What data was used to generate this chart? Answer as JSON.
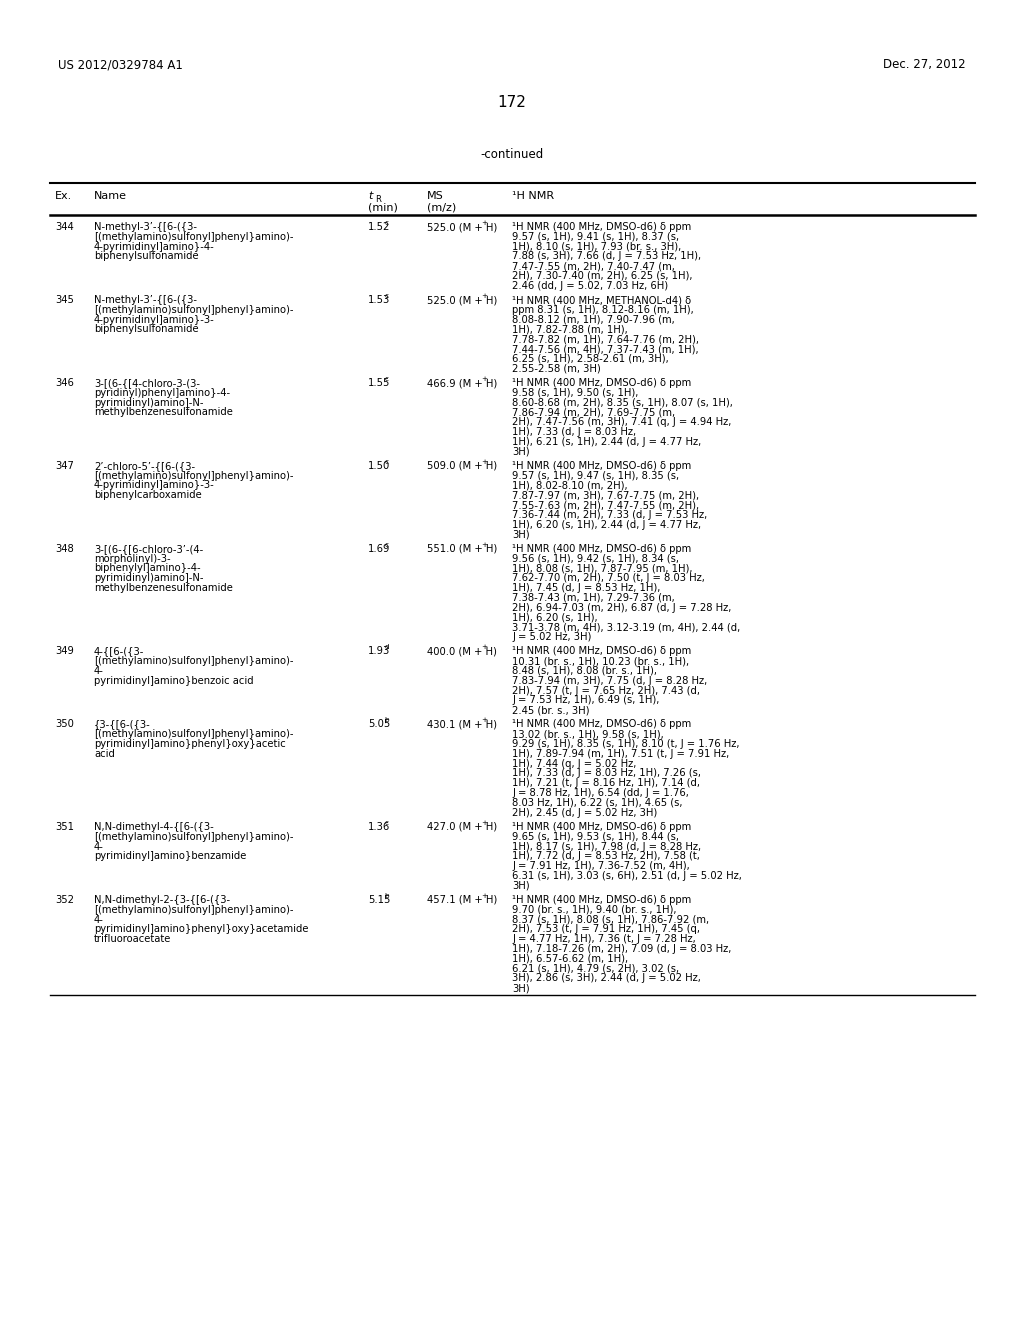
{
  "page_left": "US 2012/0329784 A1",
  "page_right": "Dec. 27, 2012",
  "page_number": "172",
  "continued": "-continued",
  "rows": [
    {
      "ex": "344",
      "name": "N-methyl-3’-{[6-({3-\n[(methylamino)sulfonyl]phenyl}amino)-\n4-pyrimidinyl]amino}-4-\nbiphenylsulfonamide",
      "tr": "1.52",
      "tr_sup": "c",
      "ms": "525.0 (M + H)+",
      "nmr": "¹H NMR (400 MHz, DMSO-d6) δ ppm\n9.57 (s, 1H), 9.41 (s, 1H), 8.37 (s,\n1H), 8.10 (s, 1H), 7.93 (br. s., 3H),\n7.88 (s, 3H), 7.66 (d, J = 7.53 Hz, 1H),\n7.47-7.55 (m, 2H), 7.40-7.47 (m,\n2H), 7.30-7.40 (m, 2H), 6.25 (s, 1H),\n2.46 (dd, J = 5.02, 7.03 Hz, 6H)"
    },
    {
      "ex": "345",
      "name": "N-methyl-3’-{[6-({3-\n[(methylamino)sulfonyl]phenyl}amino)-\n4-pyrimidinyl]amino}-3-\nbiphenylsulfonamide",
      "tr": "1.53",
      "tr_sup": "c",
      "ms": "525.0 (M + H)+",
      "nmr": "¹H NMR (400 MHz, METHANOL-d4) δ\nppm 8.31 (s, 1H), 8.12-8.16 (m, 1H),\n8.08-8.12 (m, 1H), 7.90-7.96 (m,\n1H), 7.82-7.88 (m, 1H),\n7.78-7.82 (m, 1H), 7.64-7.76 (m, 2H),\n7.44-7.56 (m, 4H), 7.37-7.43 (m, 1H),\n6.25 (s, 1H), 2.58-2.61 (m, 3H),\n2.55-2.58 (m, 3H)"
    },
    {
      "ex": "346",
      "name": "3-[(6-{[4-chloro-3-(3-\npyridinyl)phenyl]amino}-4-\npyrimidinyl)amino]-N-\nmethylbenzenesulfonamide",
      "tr": "1.55",
      "tr_sup": "c",
      "ms": "466.9 (M + H)+",
      "nmr": "¹H NMR (400 MHz, DMSO-d6) δ ppm\n9.58 (s, 1H), 9.50 (s, 1H),\n8.60-8.68 (m, 2H), 8.35 (s, 1H), 8.07 (s, 1H),\n7.86-7.94 (m, 2H), 7.69-7.75 (m,\n2H), 7.47-7.56 (m, 3H), 7.41 (q, J = 4.94 Hz,\n1H), 7.33 (d, J = 8.03 Hz,\n1H), 6.21 (s, 1H), 2.44 (d, J = 4.77 Hz,\n3H)"
    },
    {
      "ex": "347",
      "name": "2’-chloro-5’-{[6-({3-\n[(methylamino)sulfonyl]phenyl}amino)-\n4-pyrimidinyl]amino}-3-\nbiphenylcarboxamide",
      "tr": "1.50",
      "tr_sup": "c",
      "ms": "509.0 (M + H)+",
      "nmr": "¹H NMR (400 MHz, DMSO-d6) δ ppm\n9.57 (s, 1H), 9.47 (s, 1H), 8.35 (s,\n1H), 8.02-8.10 (m, 2H),\n7.87-7.97 (m, 3H), 7.67-7.75 (m, 2H),\n7.55-7.63 (m, 2H), 7.47-7.55 (m, 2H),\n7.36-7.44 (m, 2H), 7.33 (d, J = 7.53 Hz,\n1H), 6.20 (s, 1H), 2.44 (d, J = 4.77 Hz,\n3H)"
    },
    {
      "ex": "348",
      "name": "3-[(6-{[6-chloro-3’-(4-\nmorpholinyl)-3-\nbiphenylyl]amino}-4-\npyrimidinyl)amino]-N-\nmethylbenzenesulfonamide",
      "tr": "1.69",
      "tr_sup": "c",
      "ms": "551.0 (M + H)+",
      "nmr": "¹H NMR (400 MHz, DMSO-d6) δ ppm\n9.56 (s, 1H), 9.42 (s, 1H), 8.34 (s,\n1H), 8.08 (s, 1H), 7.87-7.95 (m, 1H),\n7.62-7.70 (m, 2H), 7.50 (t, J = 8.03 Hz,\n1H), 7.45 (d, J = 8.53 Hz, 1H),\n7.38-7.43 (m, 1H), 7.29-7.36 (m,\n2H), 6.94-7.03 (m, 2H), 6.87 (d, J = 7.28 Hz,\n1H), 6.20 (s, 1H),\n3.71-3.78 (m, 4H), 3.12-3.19 (m, 4H), 2.44 (d,\nJ = 5.02 Hz, 3H)"
    },
    {
      "ex": "349",
      "name": "4-{[6-({3-\n[(methylamino)sulfonyl]phenyl}amino)-\n4-\npyrimidinyl]amino}benzoic acid",
      "tr": "1.93",
      "tr_sup": "d",
      "ms": "400.0 (M + H)+",
      "nmr": "¹H NMR (400 MHz, DMSO-d6) δ ppm\n10.31 (br. s., 1H), 10.23 (br. s., 1H),\n8.48 (s, 1H), 8.08 (br. s., 1H),\n7.83-7.94 (m, 3H), 7.75 (d, J = 8.28 Hz,\n2H), 7.57 (t, J = 7.65 Hz, 2H), 7.43 (d,\nJ = 7.53 Hz, 1H), 6.49 (s, 1H),\n2.45 (br. s., 3H)"
    },
    {
      "ex": "350",
      "name": "{3-{[6-({3-\n[(methylamino)sulfonyl]phenyl}amino)-\npyrimidinyl]amino}phenyl}oxy}acetic\nacid",
      "tr": "5.05",
      "tr_sup": "b",
      "ms": "430.1 (M + H)+",
      "nmr": "¹H NMR (400 MHz, DMSO-d6) δ ppm\n13.02 (br. s., 1H), 9.58 (s, 1H),\n9.29 (s, 1H), 8.35 (s, 1H), 8.10 (t, J = 1.76 Hz,\n1H), 7.89-7.94 (m, 1H), 7.51 (t, J = 7.91 Hz,\n1H), 7.44 (q, J = 5.02 Hz,\n1H), 7.33 (d, J = 8.03 Hz, 1H), 7.26 (s,\n1H), 7.21 (t, J = 8.16 Hz, 1H), 7.14 (d,\nJ = 8.78 Hz, 1H), 6.54 (dd, J = 1.76,\n8.03 Hz, 1H), 6.22 (s, 1H), 4.65 (s,\n2H), 2.45 (d, J = 5.02 Hz, 3H)"
    },
    {
      "ex": "351",
      "name": "N,N-dimethyl-4-{[6-({3-\n[(methylamino)sulfonyl]phenyl}amino)-\n4-\npyrimidinyl]amino}benzamide",
      "tr": "1.36",
      "tr_sup": "c",
      "ms": "427.0 (M + H)+",
      "nmr": "¹H NMR (400 MHz, DMSO-d6) δ ppm\n9.65 (s, 1H), 9.53 (s, 1H), 8.44 (s,\n1H), 8.17 (s, 1H), 7.98 (d, J = 8.28 Hz,\n1H), 7.72 (d, J = 8.53 Hz, 2H), 7.58 (t,\nJ = 7.91 Hz, 1H), 7.36-7.52 (m, 4H),\n6.31 (s, 1H), 3.03 (s, 6H), 2.51 (d, J = 5.02 Hz,\n3H)"
    },
    {
      "ex": "352",
      "name": "N,N-dimethyl-2-{3-{[6-({3-\n[(methylamino)sulfonyl]phenyl}amino)-\n4-\npyrimidinyl]amino}phenyl}oxy}acetamide\ntrifluoroacetate",
      "tr": "5.15",
      "tr_sup": "b",
      "ms": "457.1 (M + H)+",
      "nmr": "¹H NMR (400 MHz, DMSO-d6) δ ppm\n9.70 (br. s., 1H), 9.40 (br. s., 1H),\n8.37 (s, 1H), 8.08 (s, 1H), 7.86-7.92 (m,\n2H), 7.53 (t, J = 7.91 Hz, 1H), 7.45 (q,\nJ = 4.77 Hz, 1H), 7.36 (t, J = 7.28 Hz,\n1H), 7.18-7.26 (m, 2H), 7.09 (d, J = 8.03 Hz,\n1H), 6.57-6.62 (m, 1H),\n6.21 (s, 1H), 4.79 (s, 2H), 3.02 (s,\n3H), 2.86 (s, 3H), 2.44 (d, J = 5.02 Hz,\n3H)"
    }
  ],
  "bg_color": "#ffffff",
  "text_color": "#000000"
}
